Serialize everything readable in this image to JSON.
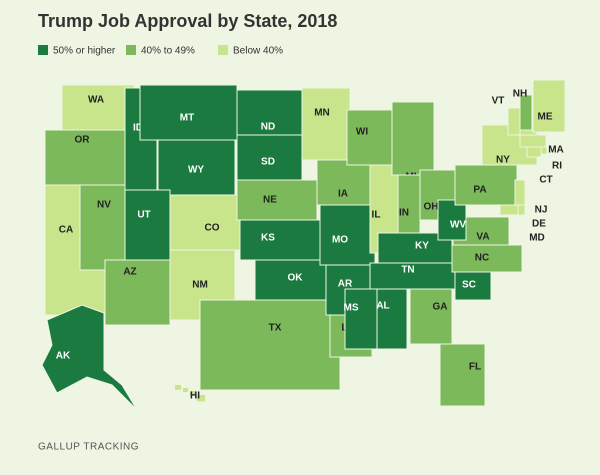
{
  "title": "Trump Job Approval by State, 2018",
  "legend": [
    {
      "label": "50% or higher",
      "color": "#1b7a3f"
    },
    {
      "label": "40% to 49%",
      "color": "#7cb95b"
    },
    {
      "label": "Below 40%",
      "color": "#c8e58c"
    }
  ],
  "states": [
    {
      "label": "WA",
      "category": 2
    },
    {
      "label": "OR",
      "category": 1
    },
    {
      "label": "CA",
      "category": 2
    },
    {
      "label": "NV",
      "category": 1
    },
    {
      "label": "ID",
      "category": 0
    },
    {
      "label": "MT",
      "category": 0
    },
    {
      "label": "WY",
      "category": 0
    },
    {
      "label": "UT",
      "category": 0
    },
    {
      "label": "AZ",
      "category": 1
    },
    {
      "label": "CO",
      "category": 2
    },
    {
      "label": "NM",
      "category": 2
    },
    {
      "label": "ND",
      "category": 0
    },
    {
      "label": "SD",
      "category": 0
    },
    {
      "label": "NE",
      "category": 1
    },
    {
      "label": "KS",
      "category": 0
    },
    {
      "label": "OK",
      "category": 0
    },
    {
      "label": "TX",
      "category": 1
    },
    {
      "label": "MN",
      "category": 2
    },
    {
      "label": "IA",
      "category": 1
    },
    {
      "label": "MO",
      "category": 0
    },
    {
      "label": "AR",
      "category": 0
    },
    {
      "label": "LA",
      "category": 1
    },
    {
      "label": "WI",
      "category": 1
    },
    {
      "label": "IL",
      "category": 2
    },
    {
      "label": "MI",
      "category": 1
    },
    {
      "label": "IN",
      "category": 1
    },
    {
      "label": "OH",
      "category": 1
    },
    {
      "label": "KY",
      "category": 0
    },
    {
      "label": "TN",
      "category": 0
    },
    {
      "label": "MS",
      "category": 0
    },
    {
      "label": "AL",
      "category": 0
    },
    {
      "label": "GA",
      "category": 1
    },
    {
      "label": "FL",
      "category": 1
    },
    {
      "label": "SC",
      "category": 0
    },
    {
      "label": "NC",
      "category": 1
    },
    {
      "label": "VA",
      "category": 1
    },
    {
      "label": "WV",
      "category": 0
    },
    {
      "label": "PA",
      "category": 1
    },
    {
      "label": "NY",
      "category": 2
    },
    {
      "label": "NJ",
      "category": 2
    },
    {
      "label": "DE",
      "category": 2
    },
    {
      "label": "MD",
      "category": 2
    },
    {
      "label": "VT",
      "category": 2
    },
    {
      "label": "NH",
      "category": 1
    },
    {
      "label": "ME",
      "category": 2
    },
    {
      "label": "MA",
      "category": 2
    },
    {
      "label": "RI",
      "category": 2
    },
    {
      "label": "CT",
      "category": 2
    },
    {
      "label": "AK",
      "category": 0
    },
    {
      "label": "HI",
      "category": 2
    }
  ],
  "source": "GALLUP TRACKING"
}
